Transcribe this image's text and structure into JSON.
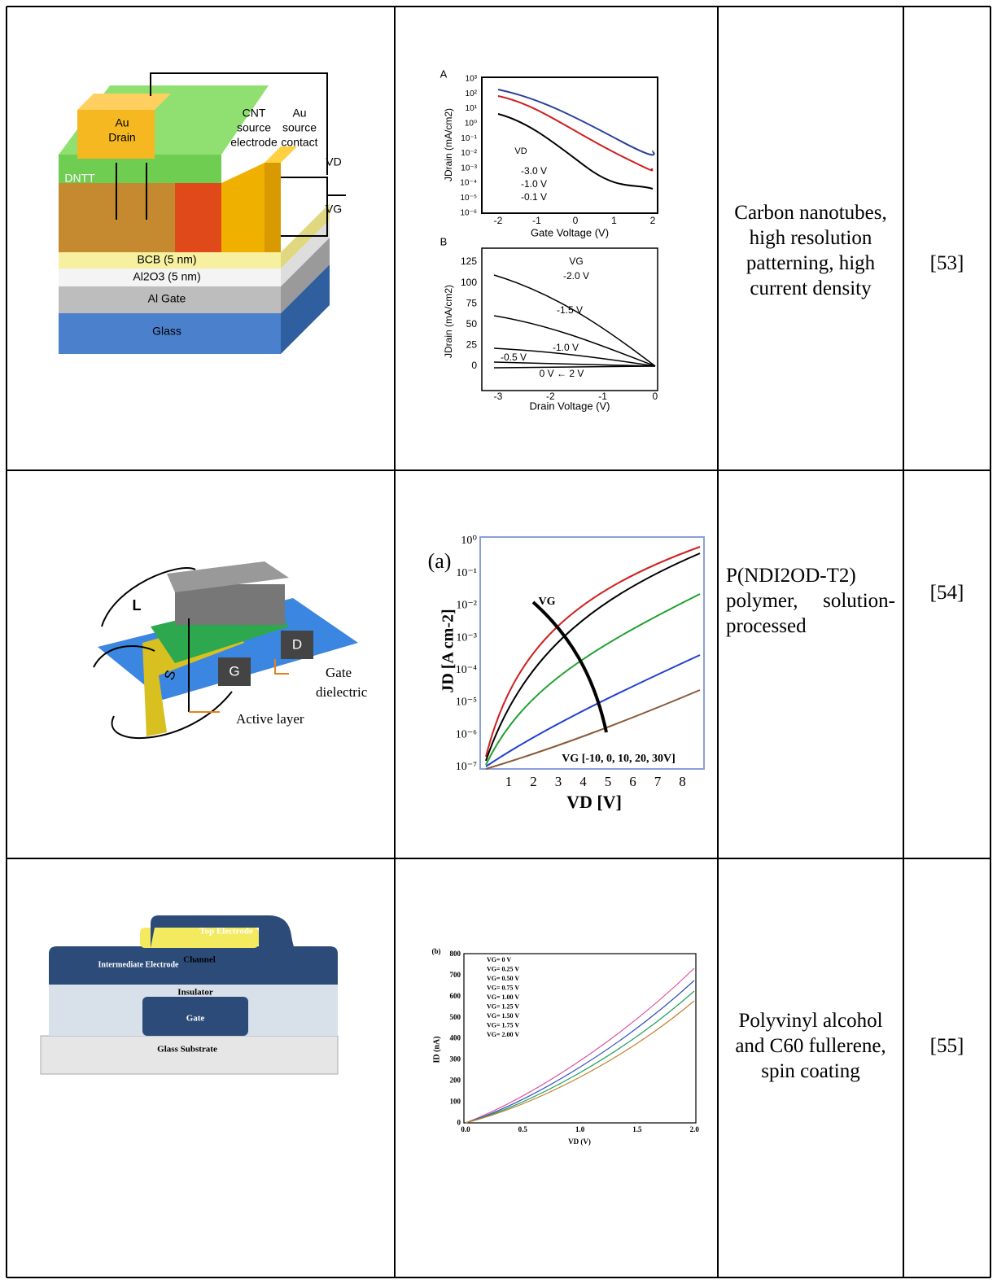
{
  "table": {
    "rows": [
      {
        "figure": {
          "drain": [
            "Au",
            "Drain"
          ],
          "cnt": [
            "CNT",
            "source",
            "electrode"
          ],
          "contact": [
            "Au",
            "source",
            "contact"
          ],
          "vd": "VD",
          "vg": "VG",
          "dntt": "DNTT",
          "layers": [
            "BCB (5 nm)",
            "Al2O3 (5 nm)",
            "Al Gate",
            "Glass"
          ]
        },
        "plot": {
          "a": {
            "panel": "A",
            "ylabel": "JDrain (mA/cm2)",
            "xlabel": "Gate Voltage (V)",
            "yticks": [
              "10³",
              "10²",
              "10¹",
              "10⁰",
              "10⁻¹",
              "10⁻²",
              "10⁻³",
              "10⁻⁴",
              "10⁻⁵",
              "10⁻⁶"
            ],
            "xticks": [
              "-2",
              "-1",
              "0",
              "1",
              "2"
            ],
            "legend_title": "VD",
            "legend": [
              "-3.0 V",
              "-1.0 V",
              "-0.1 V"
            ]
          },
          "b": {
            "panel": "B",
            "ylabel": "JDrain (mA/cm2)",
            "xlabel": "Drain Voltage (V)",
            "yticks": [
              "125",
              "100",
              "75",
              "50",
              "25",
              "0"
            ],
            "xticks": [
              "-3",
              "-2",
              "-1",
              "0"
            ],
            "curve_title": "VG",
            "curves": [
              "-2.0 V",
              "-1.5 V",
              "-1.0 V",
              "-0.5 V",
              "0 V ← 2 V"
            ]
          }
        },
        "description": "Carbon nanotubes, high resolution patterning, high current density",
        "reference": "[53]"
      },
      {
        "figure": {
          "l": "L",
          "d": "D",
          "g": "G",
          "s": "S",
          "gate": [
            "Gate",
            "dielectric"
          ],
          "active": "Active layer"
        },
        "plot": {
          "panel": "(a)",
          "yticks": [
            "10⁰",
            "10⁻¹",
            "10⁻²",
            "10⁻³",
            "10⁻⁴",
            "10⁻⁵",
            "10⁻⁶",
            "10⁻⁷"
          ],
          "xticks": [
            "1",
            "2",
            "3",
            "4",
            "5",
            "6",
            "7",
            "8"
          ],
          "ylabel": "JD [A cm-2]",
          "xlabel": "VD [V]",
          "arrow_label": "VG",
          "note": "VG [-10, 0, 10, 20, 30V]"
        },
        "description": "P(NDI2OD-T2) polymer, solution-processed",
        "reference": "[54]"
      },
      {
        "figure": {
          "top": "Top Electrode",
          "channel": "Channel",
          "intermediate": "Intermediate Electrode",
          "insulator": "Insulator",
          "gate": "Gate",
          "substrate": "Glass Substrate"
        },
        "plot": {
          "panel": "(b)",
          "yticks": [
            "800",
            "700",
            "600",
            "500",
            "400",
            "300",
            "200",
            "100",
            "0"
          ],
          "xticks": [
            "0.0",
            "0.5",
            "1.0",
            "1.5",
            "2.0"
          ],
          "ylabel": "ID (nA)",
          "xlabel": "VD (V)",
          "legend": [
            "VG= 0 V",
            "VG= 0.25 V",
            "VG= 0.50 V",
            "VG= 0.75 V",
            "VG= 1.00 V",
            "VG= 1.25 V",
            "VG= 1.50 V",
            "VG= 1.75 V",
            "VG= 2.00 V"
          ]
        },
        "description": "Polyvinyl alcohol and C60 fullerene, spin coating",
        "reference": "[55]"
      }
    ]
  }
}
